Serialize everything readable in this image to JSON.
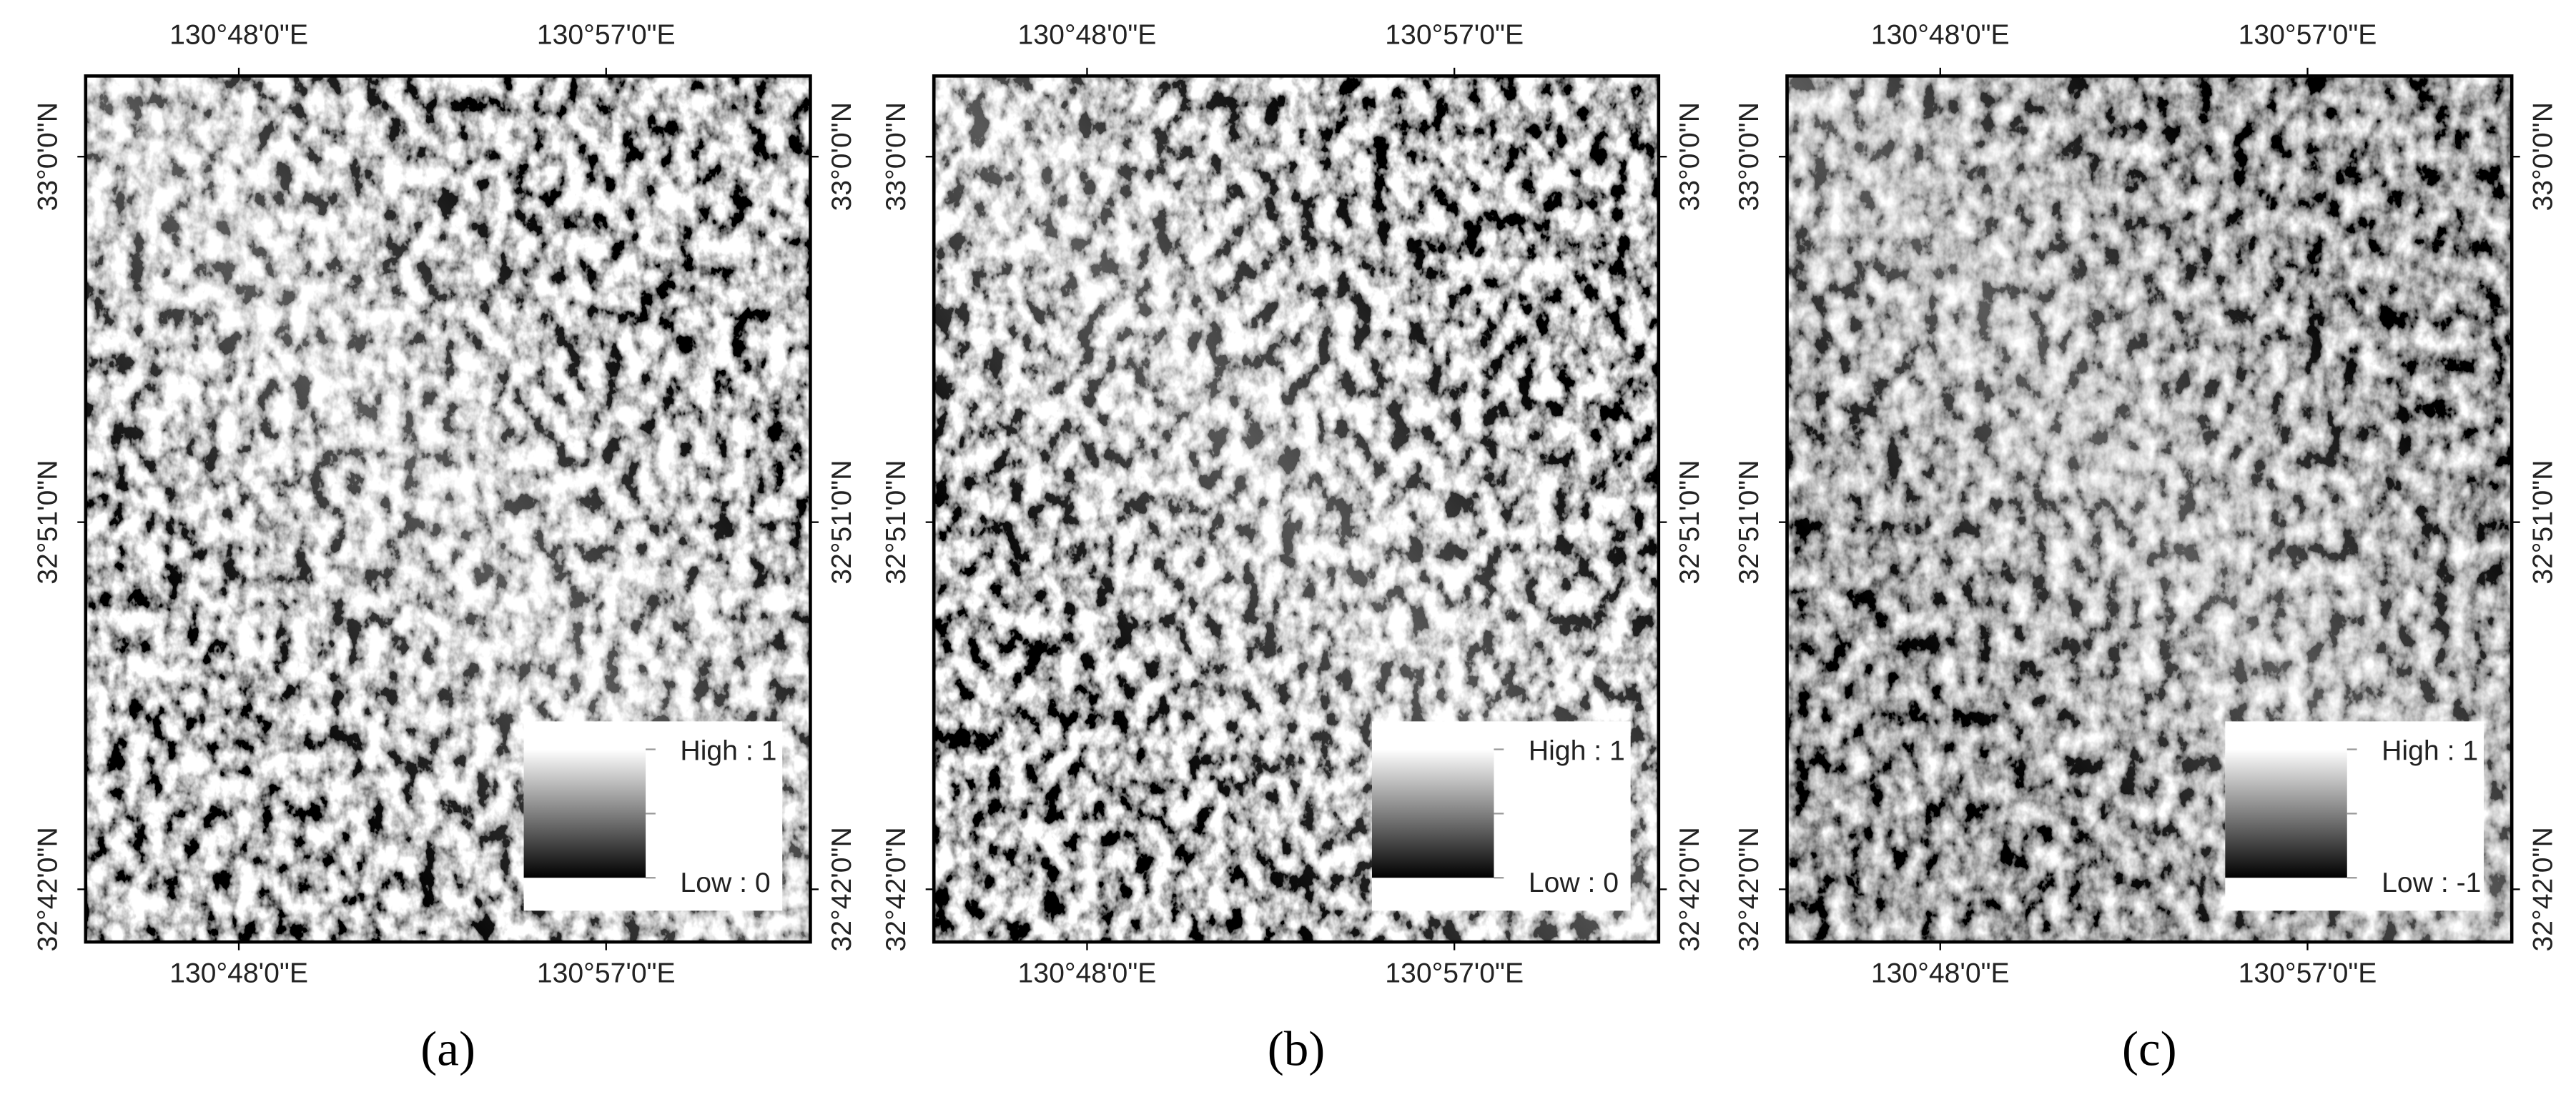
{
  "panels": [
    {
      "top_labels": [
        "130°48'0\"E",
        "130°57'0\"E"
      ],
      "bottom_labels": [
        "130°48'0\"E",
        "130°57'0\"E"
      ],
      "left_labels": [
        "33°0'0\"N",
        "32°51'0\"N",
        "32°42'0\"N"
      ],
      "right_labels": [
        "33°0'0\"N",
        "32°51'0\"N",
        "32°42'0\"N"
      ],
      "legend": {
        "high": "High : 1",
        "low": "Low : 0"
      },
      "caption": "(a)"
    },
    {
      "top_labels": [
        "130°48'0\"E",
        "130°57'0\"E"
      ],
      "bottom_labels": [
        "130°48'0\"E",
        "130°57'0\"E"
      ],
      "left_labels": [
        "33°0'0\"N",
        "32°51'0\"N",
        "32°42'0\"N"
      ],
      "right_labels": [
        "33°0'0\"N",
        "32°51'0\"N",
        "32°42'0\"N"
      ],
      "legend": {
        "high": "High : 1",
        "low": "Low : 0"
      },
      "caption": "(b)"
    },
    {
      "top_labels": [
        "130°48'0\"E",
        "130°57'0\"E"
      ],
      "bottom_labels": [
        "130°48'0\"E",
        "130°57'0\"E"
      ],
      "left_labels": [
        "33°0'0\"N",
        "32°51'0\"N",
        "32°42'0\"N"
      ],
      "right_labels": [
        "33°0'0\"N",
        "32°51'0\"N",
        "32°42'0\"N"
      ],
      "legend": {
        "high": "High : 1",
        "low": "Low : -1"
      },
      "caption": "(c)"
    }
  ]
}
